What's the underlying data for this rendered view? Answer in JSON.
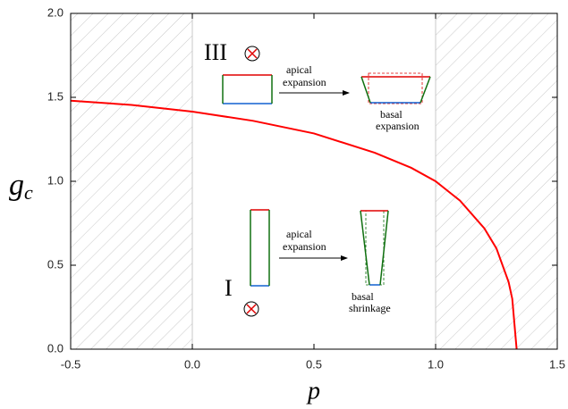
{
  "chart_data": {
    "type": "line",
    "x_label": "p",
    "y_label": {
      "main": "g",
      "sub": "c"
    },
    "xlim": [
      -0.5,
      1.5
    ],
    "ylim": [
      0,
      2
    ],
    "xticks": [
      -0.5,
      {
        "value": 0,
        "label": "0.0"
      },
      0.5,
      {
        "value": 1,
        "label": "1.0"
      },
      1.5
    ],
    "yticks": [
      {
        "value": 0,
        "label": "0.0"
      },
      0.5,
      {
        "value": 1,
        "label": "1.0"
      },
      1.5,
      {
        "value": 2,
        "label": "2.0"
      }
    ],
    "shaded_regions": [
      [
        -0.5,
        0
      ],
      [
        1,
        1.5
      ]
    ],
    "series": [
      {
        "color": "#ff0000",
        "x": [
          -0.5,
          -0.25,
          0,
          0.25,
          0.5,
          0.75,
          0.9,
          1.0,
          1.1,
          1.2,
          1.25,
          1.3,
          1.315,
          1.333
        ],
        "values": [
          1.48,
          1.455,
          1.415,
          1.36,
          1.285,
          1.17,
          1.08,
          1.0,
          0.885,
          0.72,
          0.6,
          0.4,
          0.3,
          0.0
        ]
      }
    ],
    "annotations": {
      "upper_label": "III",
      "lower_label": "I",
      "upper_arrow": [
        "apical",
        "expansion"
      ],
      "upper_result": [
        "basal",
        "expansion"
      ],
      "lower_arrow": [
        "apical",
        "expansion"
      ],
      "lower_result": [
        "basal",
        "shrinkage"
      ]
    }
  }
}
